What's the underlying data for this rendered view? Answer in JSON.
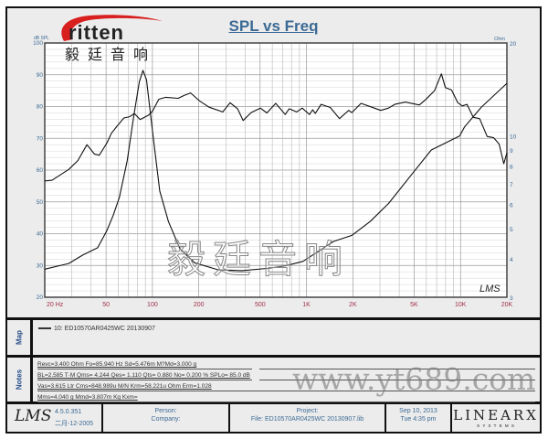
{
  "brand": {
    "logo_word": "ritten",
    "logo_cn": "毅廷音响",
    "watermark_cn": "毅廷音响",
    "watermark_url": "www.yt689.com"
  },
  "chart_data": {
    "type": "line",
    "title": "SPL vs Freq",
    "xlabel": "",
    "ylabel": "dB SPL",
    "y2label": "Ohm",
    "xscale": "log",
    "xlim": [
      20,
      20000
    ],
    "ylim": [
      20,
      100
    ],
    "y2lim": [
      3,
      20
    ],
    "y2scale": "log",
    "x_ticks": [
      "20 Hz",
      "50",
      "100",
      "200",
      "500",
      "1K",
      "2K",
      "5K",
      "10K",
      "20K"
    ],
    "x_tick_values": [
      20,
      50,
      100,
      200,
      500,
      1000,
      2000,
      5000,
      10000,
      20000
    ],
    "y_ticks": [
      20,
      30,
      40,
      50,
      60,
      70,
      80,
      90,
      100
    ],
    "y2_ticks": [
      3,
      4,
      5,
      6,
      7,
      8,
      9,
      10,
      20
    ],
    "grid": true,
    "watermark": "LMS",
    "series": [
      {
        "axis": "left",
        "unit": "dB SPL",
        "points": [
          [
            20,
            56.6
          ],
          [
            22.3,
            56.8
          ],
          [
            28.6,
            60.2
          ],
          [
            32.8,
            63
          ],
          [
            37.6,
            68
          ],
          [
            42.1,
            65
          ],
          [
            45.2,
            64.7
          ],
          [
            50.6,
            68.5
          ],
          [
            54.2,
            71.6
          ],
          [
            59.4,
            74
          ],
          [
            65.2,
            76.4
          ],
          [
            71.2,
            76.8
          ],
          [
            76.3,
            77.8
          ],
          [
            83.2,
            75.9
          ],
          [
            94.4,
            77.3
          ],
          [
            100,
            78.5
          ],
          [
            110,
            82.3
          ],
          [
            122,
            82.9
          ],
          [
            147,
            82.6
          ],
          [
            161,
            83.5
          ],
          [
            177,
            84.3
          ],
          [
            203,
            81.7
          ],
          [
            233,
            79.8
          ],
          [
            286,
            78.3
          ],
          [
            319,
            81.2
          ],
          [
            357,
            79.3
          ],
          [
            388,
            75.6
          ],
          [
            437,
            78.1
          ],
          [
            502,
            79.5
          ],
          [
            553,
            78
          ],
          [
            632,
            81
          ],
          [
            728,
            77.5
          ],
          [
            772,
            79.3
          ],
          [
            863,
            78.3
          ],
          [
            938,
            79.5
          ],
          [
            1046,
            77.5
          ],
          [
            1097,
            79
          ],
          [
            1140,
            77.8
          ],
          [
            1244,
            80.7
          ],
          [
            1427,
            79.7
          ],
          [
            1637,
            76.2
          ],
          [
            1880,
            78.8
          ],
          [
            1970,
            78.1
          ],
          [
            2260,
            81
          ],
          [
            2760,
            79.5
          ],
          [
            3030,
            78.8
          ],
          [
            3410,
            79.5
          ],
          [
            3740,
            80.7
          ],
          [
            4390,
            81.4
          ],
          [
            5400,
            80.5
          ],
          [
            5910,
            82.1
          ],
          [
            6780,
            85
          ],
          [
            7510,
            90.3
          ],
          [
            7970,
            86
          ],
          [
            8740,
            85.2
          ],
          [
            9590,
            81.2
          ],
          [
            10280,
            80.2
          ],
          [
            11020,
            80.7
          ],
          [
            12100,
            76.6
          ],
          [
            13300,
            76.2
          ],
          [
            14900,
            70.6
          ],
          [
            16400,
            70.2
          ],
          [
            17800,
            68.2
          ],
          [
            19100,
            62
          ],
          [
            20000,
            65.4
          ]
        ]
      },
      {
        "axis": "right",
        "unit": "Ohm",
        "points": [
          [
            20,
            3.7
          ],
          [
            28.6,
            3.86
          ],
          [
            35.3,
            4.11
          ],
          [
            44.1,
            4.34
          ],
          [
            50.6,
            4.93
          ],
          [
            55.6,
            5.52
          ],
          [
            61,
            6.32
          ],
          [
            68.6,
            8.31
          ],
          [
            75.3,
            11.42
          ],
          [
            82.3,
            15.0
          ],
          [
            86.8,
            16.3
          ],
          [
            91.5,
            15.2
          ],
          [
            100,
            10.4
          ],
          [
            111.5,
            6.63
          ],
          [
            127,
            5.28
          ],
          [
            151,
            4.3
          ],
          [
            188,
            3.88
          ],
          [
            268,
            3.68
          ],
          [
            380,
            3.66
          ],
          [
            553,
            3.72
          ],
          [
            728,
            3.79
          ],
          [
            949,
            3.92
          ],
          [
            1097,
            4.11
          ],
          [
            1497,
            4.55
          ],
          [
            1970,
            4.76
          ],
          [
            2590,
            5.28
          ],
          [
            3410,
            6.04
          ],
          [
            4900,
            7.58
          ],
          [
            6460,
            9.0
          ],
          [
            9870,
            10.0
          ],
          [
            10630,
            10.7
          ],
          [
            13660,
            12.4
          ],
          [
            20000,
            14.8
          ]
        ]
      }
    ]
  },
  "map": {
    "tab": "Map",
    "legend": "10: ED10570AR0425WC  20130907"
  },
  "notes": {
    "tab": "Notes",
    "lines": [
      "Revc=3.400 Ohm  Fo=85.940 Hz  Sd=5.476m M?Md=3.000 g",
      "BL=2.585 T·M  Qms= 4.244  Qes= 1.110  Qts= 0.880  No= 0.200 %  SPLo= 85.0 dB",
      "Vas=3.615 Ltr  Cms=848.989u M/N  Krm=58.221u Ohm  Erm=1.028",
      "Mms=4.040 g  Mmd=3.807m Kg  Kxm="
    ]
  },
  "footer": {
    "lms": "LMS",
    "version": "4.5.0.351",
    "build_date": "二月-12-2005",
    "person": "Person:",
    "company": "Company:",
    "project": "Project:",
    "file": "File: ED10570AR0425WC  20130907.lib",
    "date": "Sep 10, 2013",
    "time": "Tue  4:35 pm",
    "brand": "LINEARX",
    "brand_sub": "S Y S T E M S"
  },
  "colors": {
    "tick_x": "#a0304a",
    "tick_y": "#3c6a95",
    "curve": "#111111",
    "title": "#3c6a95"
  }
}
